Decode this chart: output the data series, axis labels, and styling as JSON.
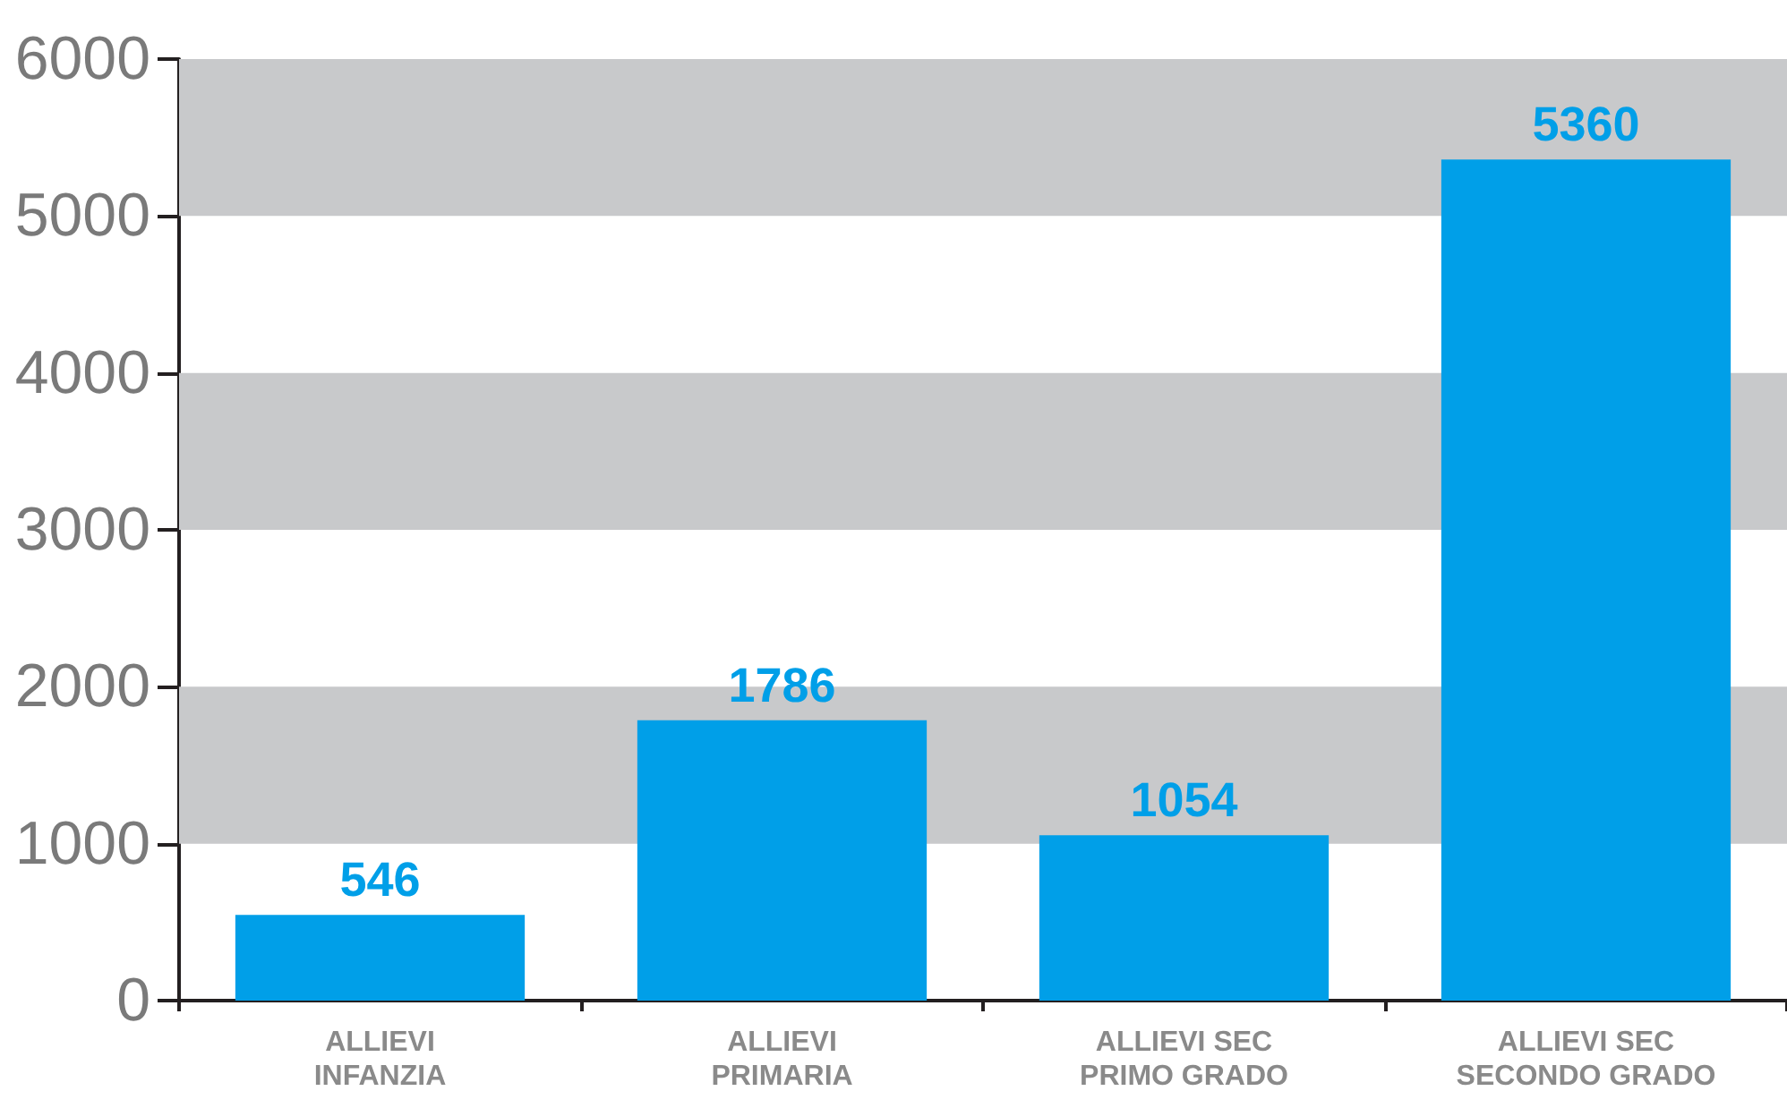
{
  "chart_data": {
    "type": "bar",
    "categories": [
      "ALLIEVI\nINFANZIA",
      "ALLIEVI\nPRIMARIA",
      "ALLIEVI SEC\nPRIMO GRADO",
      "ALLIEVI SEC\nSECONDO GRADO"
    ],
    "values": [
      546,
      1786,
      1054,
      5360
    ],
    "color": "#009fe8",
    "ylim": [
      0,
      6000
    ],
    "yticks": [
      0,
      1000,
      2000,
      3000,
      4000,
      5000,
      6000
    ],
    "bands": [
      {
        "axis": "y",
        "from": 1000,
        "to": 2000,
        "color": "#c8c9cb"
      },
      {
        "axis": "y",
        "from": 3000,
        "to": 4000,
        "color": "#c8c9cb"
      },
      {
        "axis": "y",
        "from": 5000,
        "to": 6000,
        "color": "#c8c9cb"
      }
    ],
    "data_labels": true
  }
}
